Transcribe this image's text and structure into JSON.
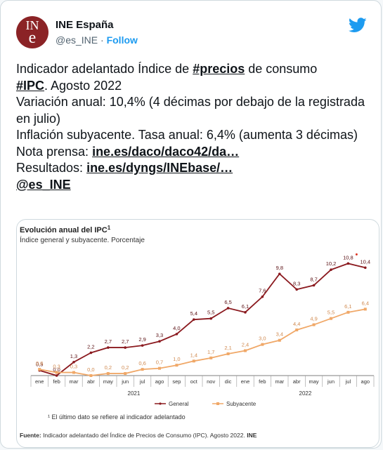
{
  "account": {
    "avatar_text_top": "IN",
    "avatar_text_bottom": "e",
    "name": "INE España",
    "handle": "@es_INE",
    "separator": " · ",
    "follow_label": "Follow"
  },
  "tweet": {
    "line1_pre": "Indicador adelantado Índice de ",
    "hashtag_precios": "#precios",
    "line1_post": " de consumo",
    "hashtag_ipc": "#IPC",
    "line2_post": ". Agosto 2022",
    "line3": "Variación anual: 10,4% (4 décimas por debajo de la registrada en julio)",
    "line4": "Inflación subyacente. Tasa anual: 6,4% (aumenta 3 décimas)",
    "nota_label": "Nota prensa: ",
    "nota_link": "ine.es/daco/daco42/da…",
    "resultados_label": "Resultados: ",
    "resultados_link": "ine.es/dyngs/INEbase/…",
    "mention": "@es_INE"
  },
  "colors": {
    "general": "#8b1a1f",
    "subyacente": "#f0a868",
    "brand": "#8b2326",
    "twitter": "#1d9bf0"
  },
  "chart_data": {
    "type": "line",
    "title": "Evolución anual del IPC",
    "title_superscript": "1",
    "subtitle": "Índice general y subyacente. Porcentaje",
    "categories": [
      "ene",
      "feb",
      "mar",
      "abr",
      "may",
      "jun",
      "jul",
      "ago",
      "sep",
      "oct",
      "nov",
      "dic",
      "ene",
      "feb",
      "mar",
      "abr",
      "may",
      "jun",
      "jul",
      "ago"
    ],
    "year_labels": [
      {
        "label": "2021",
        "from": 0,
        "to": 11
      },
      {
        "label": "2022",
        "from": 12,
        "to": 19
      }
    ],
    "series": [
      {
        "name": "General",
        "values": [
          0.5,
          0.0,
          1.3,
          2.2,
          2.7,
          2.7,
          2.9,
          3.3,
          4.0,
          5.4,
          5.5,
          6.5,
          6.1,
          7.6,
          9.8,
          8.3,
          8.7,
          10.2,
          10.8,
          10.4
        ],
        "labels": [
          "0,5",
          "0,0",
          "1,3",
          "2,2",
          "2,7",
          "2,7",
          "2,9",
          "3,3",
          "4,0",
          "5,4",
          "5,5",
          "6,5",
          "6,1",
          "7,6",
          "9,8",
          "8,3",
          "8,7",
          "10,2",
          "10,8",
          "10,4"
        ]
      },
      {
        "name": "Subyacente",
        "values": [
          0.6,
          0.3,
          0.3,
          0.0,
          0.2,
          0.2,
          0.6,
          0.7,
          1.0,
          1.4,
          1.7,
          2.1,
          2.4,
          3.0,
          3.4,
          4.4,
          4.9,
          5.5,
          6.1,
          6.4
        ],
        "labels": [
          "0,6",
          "0,3",
          "0,3",
          "0,0",
          "0,2",
          "0,2",
          "0,6",
          "0,7",
          "1,0",
          "1,4",
          "1,7",
          "2,1",
          "2,4",
          "3,0",
          "3,4",
          "4,4",
          "4,9",
          "5,5",
          "6,1",
          "6,4"
        ]
      }
    ],
    "ylim": [
      0,
      11.5
    ],
    "legend": "bottom-center",
    "footnote": "¹ El último dato se refiere al indicador adelantado",
    "source_label": "Fuente:",
    "source_text": " Indicador adelantado del Índice de Precios de Consumo (IPC). Agosto 2022. ",
    "source_org": "INE"
  }
}
